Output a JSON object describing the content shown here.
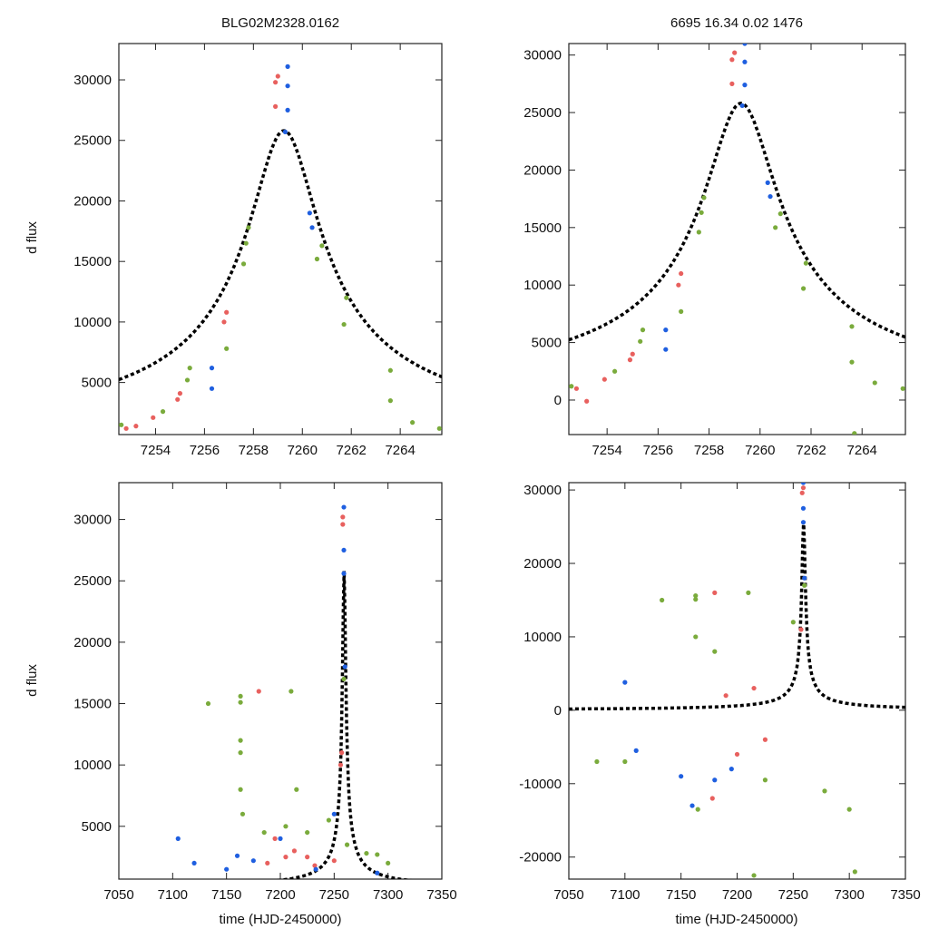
{
  "title_left": "BLG02M2328.0162",
  "title_right": "6695  16.34  0.02  1476",
  "ylabel": "d flux",
  "xlabel": "time (HJD-2450000)",
  "colors": {
    "red": "#e8605e",
    "blue": "#1f5fe0",
    "green": "#7aab3c",
    "model": "#000000"
  },
  "model": {
    "t0": 7259.25,
    "peak": 25800,
    "tau": 1.4,
    "baseline": 0
  },
  "chart_data": [
    {
      "type": "scatter",
      "panel": "top-left",
      "xlim": [
        7252.5,
        7265.7
      ],
      "ylim": [
        700,
        33000
      ],
      "xticks": [
        7254,
        7256,
        7258,
        7260,
        7262,
        7264
      ],
      "yticks": [
        5000,
        10000,
        15000,
        20000,
        25000,
        30000
      ],
      "ylabel": "d flux",
      "series": [
        {
          "name": "red",
          "points": [
            [
              7252.8,
              1200
            ],
            [
              7253.2,
              1400
            ],
            [
              7253.9,
              2100
            ],
            [
              7254.9,
              3600
            ],
            [
              7255.0,
              4100
            ],
            [
              7256.8,
              10000
            ],
            [
              7256.9,
              10800
            ],
            [
              7258.9,
              27800
            ],
            [
              7258.9,
              29800
            ],
            [
              7259.0,
              30300
            ]
          ]
        },
        {
          "name": "blue",
          "points": [
            [
              7256.3,
              4500
            ],
            [
              7256.3,
              6200
            ],
            [
              7259.3,
              25700
            ],
            [
              7259.4,
              27500
            ],
            [
              7259.4,
              29500
            ],
            [
              7259.4,
              31100
            ],
            [
              7260.4,
              17800
            ],
            [
              7260.3,
              19000
            ]
          ]
        },
        {
          "name": "green",
          "points": [
            [
              7252.6,
              1500
            ],
            [
              7254.3,
              2600
            ],
            [
              7255.3,
              5200
            ],
            [
              7255.4,
              6200
            ],
            [
              7256.9,
              7800
            ],
            [
              7257.6,
              14800
            ],
            [
              7257.7,
              16500
            ],
            [
              7257.8,
              17800
            ],
            [
              7260.6,
              15200
            ],
            [
              7260.8,
              16300
            ],
            [
              7261.7,
              9800
            ],
            [
              7261.8,
              12000
            ],
            [
              7263.6,
              3500
            ],
            [
              7263.6,
              6000
            ],
            [
              7264.5,
              1700
            ],
            [
              7265.6,
              1200
            ]
          ]
        }
      ]
    },
    {
      "type": "scatter",
      "panel": "top-right",
      "xlim": [
        7252.5,
        7265.7
      ],
      "ylim": [
        -3000,
        31000
      ],
      "xticks": [
        7254,
        7256,
        7258,
        7260,
        7262,
        7264
      ],
      "yticks": [
        0,
        5000,
        10000,
        15000,
        20000,
        25000,
        30000
      ],
      "series": [
        {
          "name": "red",
          "points": [
            [
              7252.8,
              1000
            ],
            [
              7253.2,
              -100
            ],
            [
              7253.9,
              1800
            ],
            [
              7254.9,
              3500
            ],
            [
              7255.0,
              4000
            ],
            [
              7256.8,
              10000
            ],
            [
              7256.9,
              11000
            ],
            [
              7258.9,
              27500
            ],
            [
              7258.9,
              29600
            ],
            [
              7259.0,
              30200
            ]
          ]
        },
        {
          "name": "blue",
          "points": [
            [
              7256.3,
              4400
            ],
            [
              7256.3,
              6100
            ],
            [
              7259.3,
              25600
            ],
            [
              7259.4,
              27400
            ],
            [
              7259.4,
              29400
            ],
            [
              7259.4,
              31000
            ],
            [
              7260.4,
              17700
            ],
            [
              7260.3,
              18900
            ]
          ]
        },
        {
          "name": "green",
          "points": [
            [
              7252.6,
              1200
            ],
            [
              7254.3,
              2500
            ],
            [
              7255.3,
              5100
            ],
            [
              7255.4,
              6100
            ],
            [
              7256.9,
              7700
            ],
            [
              7257.6,
              14600
            ],
            [
              7257.7,
              16300
            ],
            [
              7257.8,
              17600
            ],
            [
              7260.6,
              15000
            ],
            [
              7260.8,
              16200
            ],
            [
              7261.7,
              9700
            ],
            [
              7261.8,
              11900
            ],
            [
              7263.6,
              3300
            ],
            [
              7263.6,
              6400
            ],
            [
              7264.5,
              1500
            ],
            [
              7265.6,
              1000
            ],
            [
              7263.7,
              -2900
            ]
          ]
        }
      ]
    },
    {
      "type": "scatter",
      "panel": "bottom-left",
      "xlim": [
        7050,
        7350
      ],
      "ylim": [
        700,
        33000
      ],
      "xticks": [
        7050,
        7100,
        7150,
        7200,
        7250,
        7300,
        7350
      ],
      "yticks": [
        5000,
        10000,
        15000,
        20000,
        25000,
        30000
      ],
      "ylabel": "d flux",
      "xlabel": "time (HJD-2450000)",
      "series": [
        {
          "name": "red",
          "points": [
            [
              7180,
              16000
            ],
            [
              7188,
              2000
            ],
            [
              7195,
              4000
            ],
            [
              7205,
              2500
            ],
            [
              7213,
              3000
            ],
            [
              7225,
              2500
            ],
            [
              7232,
              1800
            ],
            [
              7250,
              2200
            ],
            [
              7256,
              10000
            ],
            [
              7257,
              11000
            ],
            [
              7258,
              29600
            ],
            [
              7258,
              30200
            ]
          ]
        },
        {
          "name": "blue",
          "points": [
            [
              7105,
              4000
            ],
            [
              7120,
              2000
            ],
            [
              7150,
              1500
            ],
            [
              7160,
              2600
            ],
            [
              7175,
              2200
            ],
            [
              7200,
              4000
            ],
            [
              7233,
              1500
            ],
            [
              7250,
              6000
            ],
            [
              7259,
              25600
            ],
            [
              7259,
              27500
            ],
            [
              7259,
              31000
            ],
            [
              7260,
              18000
            ],
            [
              7290,
              1200
            ]
          ]
        },
        {
          "name": "green",
          "points": [
            [
              7133,
              15000
            ],
            [
              7163,
              15600
            ],
            [
              7163,
              15100
            ],
            [
              7163,
              12000
            ],
            [
              7163,
              11000
            ],
            [
              7163,
              8000
            ],
            [
              7165,
              6000
            ],
            [
              7185,
              4500
            ],
            [
              7205,
              5000
            ],
            [
              7210,
              16000
            ],
            [
              7215,
              8000
            ],
            [
              7225,
              4500
            ],
            [
              7245,
              5500
            ],
            [
              7259,
              17000
            ],
            [
              7262,
              3500
            ],
            [
              7280,
              2800
            ],
            [
              7290,
              2700
            ],
            [
              7300,
              2000
            ]
          ]
        }
      ]
    },
    {
      "type": "scatter",
      "panel": "bottom-right",
      "xlim": [
        7050,
        7350
      ],
      "ylim": [
        -23000,
        31000
      ],
      "xticks": [
        7050,
        7100,
        7150,
        7200,
        7250,
        7300,
        7350
      ],
      "yticks": [
        -20000,
        -10000,
        0,
        10000,
        20000,
        30000
      ],
      "xlabel": "time (HJD-2450000)",
      "series": [
        {
          "name": "red",
          "points": [
            [
              7180,
              16000
            ],
            [
              7178,
              -12000
            ],
            [
              7190,
              2000
            ],
            [
              7200,
              -6000
            ],
            [
              7215,
              3000
            ],
            [
              7225,
              -4000
            ],
            [
              7257,
              11000
            ],
            [
              7258,
              29600
            ],
            [
              7259,
              30300
            ]
          ]
        },
        {
          "name": "blue",
          "points": [
            [
              7100,
              3800
            ],
            [
              7110,
              -5500
            ],
            [
              7150,
              -9000
            ],
            [
              7160,
              -13000
            ],
            [
              7180,
              -9500
            ],
            [
              7195,
              -8000
            ],
            [
              7259,
              25600
            ],
            [
              7259,
              27500
            ],
            [
              7259,
              31000
            ],
            [
              7260,
              18000
            ]
          ]
        },
        {
          "name": "green",
          "points": [
            [
              7075,
              -7000
            ],
            [
              7100,
              -7000
            ],
            [
              7133,
              15000
            ],
            [
              7163,
              15600
            ],
            [
              7163,
              15100
            ],
            [
              7163,
              10000
            ],
            [
              7165,
              -13500
            ],
            [
              7180,
              8000
            ],
            [
              7210,
              16000
            ],
            [
              7215,
              -22500
            ],
            [
              7225,
              -9500
            ],
            [
              7250,
              12000
            ],
            [
              7260,
              17000
            ],
            [
              7278,
              -11000
            ],
            [
              7300,
              -13500
            ],
            [
              7305,
              -22000
            ]
          ]
        }
      ]
    }
  ]
}
